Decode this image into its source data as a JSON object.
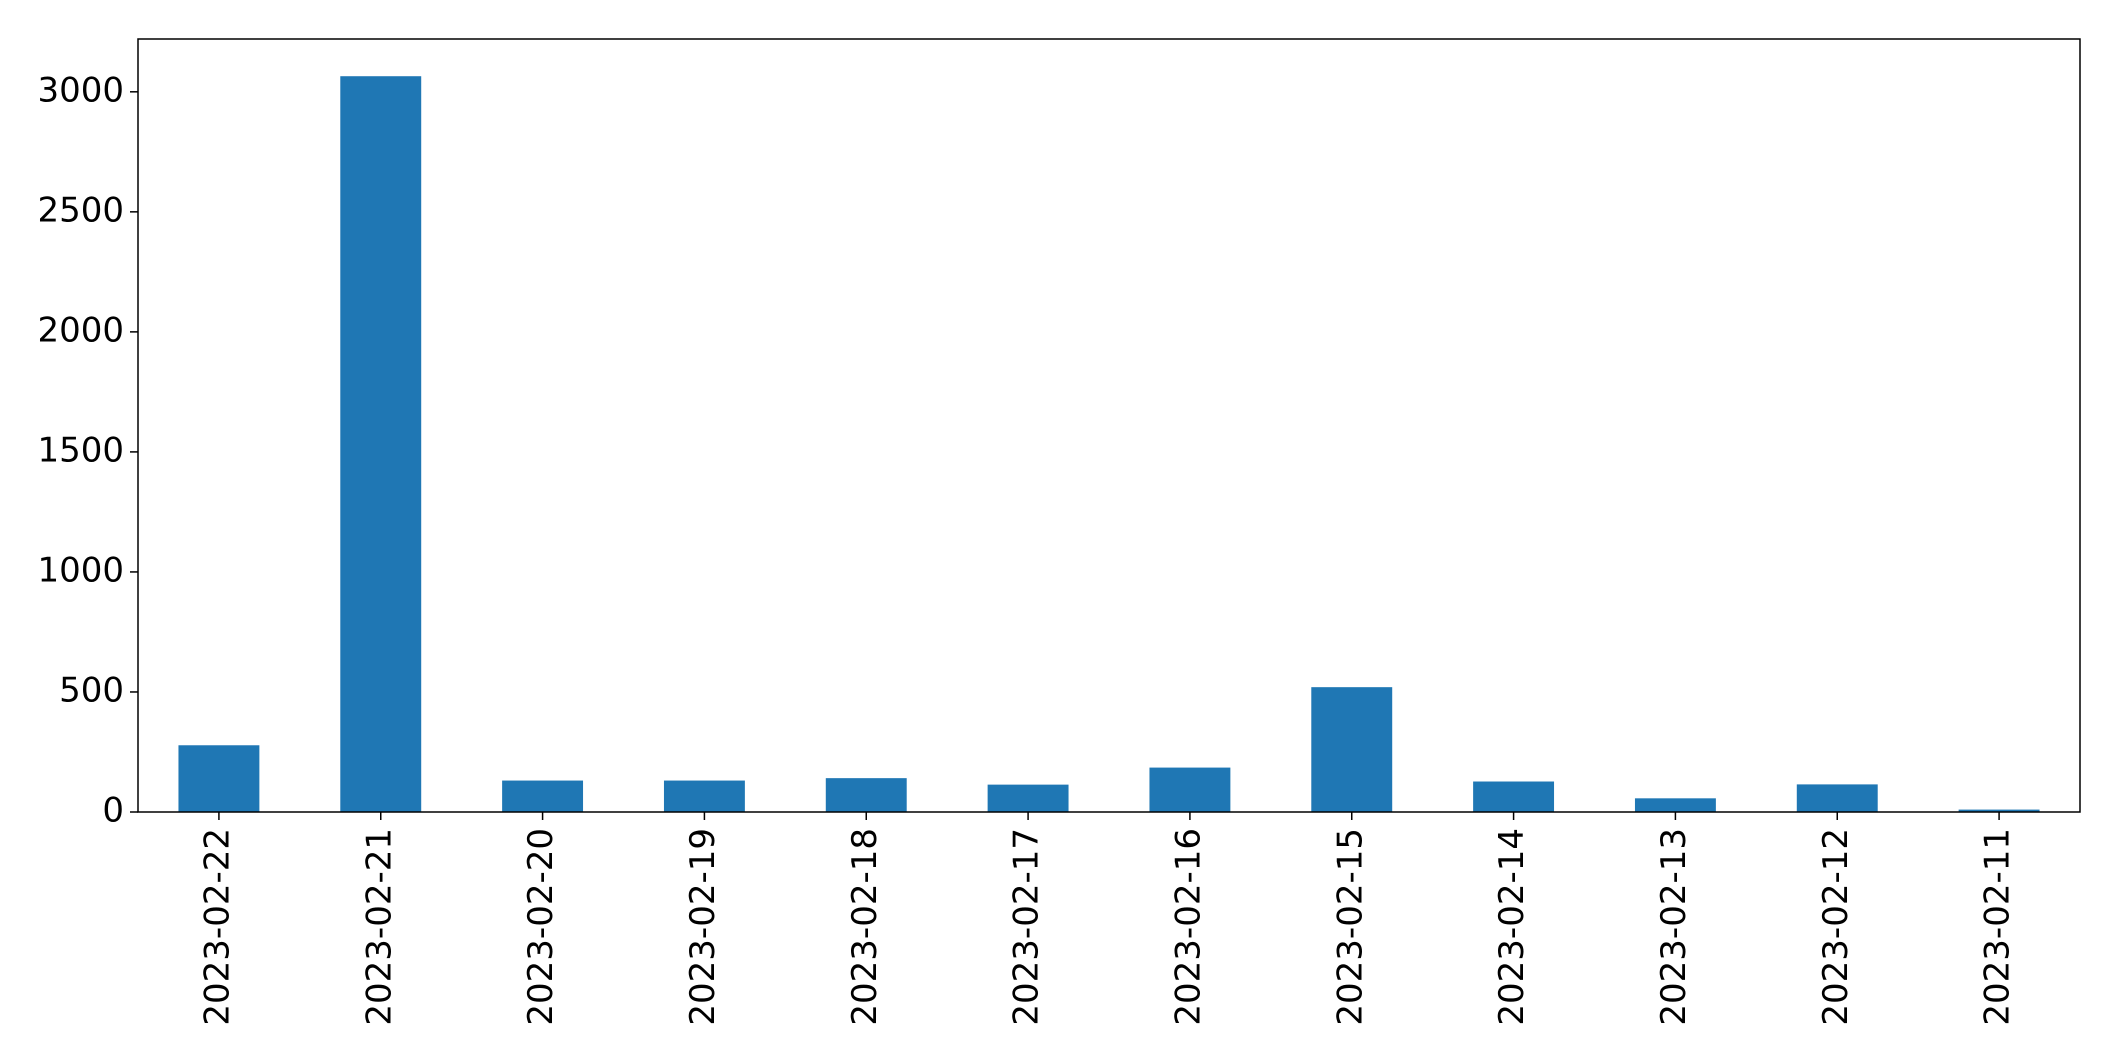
{
  "chart_data": {
    "type": "bar",
    "categories": [
      "2023-02-22",
      "2023-02-21",
      "2023-02-20",
      "2023-02-19",
      "2023-02-18",
      "2023-02-17",
      "2023-02-16",
      "2023-02-15",
      "2023-02-14",
      "2023-02-13",
      "2023-02-12",
      "2023-02-11"
    ],
    "values": [
      278,
      3065,
      131,
      131,
      141,
      114,
      185,
      520,
      127,
      57,
      115,
      10
    ],
    "title": "",
    "xlabel": "",
    "ylabel": "",
    "ylim": [
      0,
      3220
    ],
    "yticks": [
      0,
      500,
      1000,
      1500,
      2000,
      2500,
      3000
    ],
    "grid": false,
    "bar_color": "#1f77b4"
  }
}
